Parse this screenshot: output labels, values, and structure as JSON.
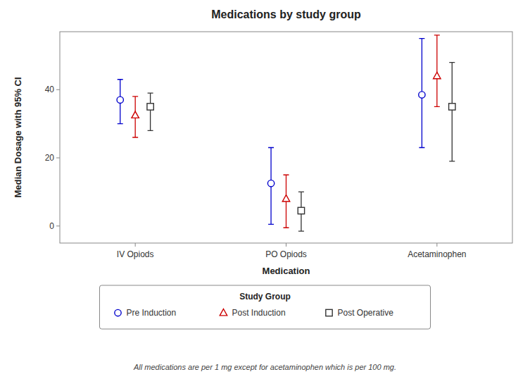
{
  "chart_data": {
    "type": "errorbar",
    "title": "Medications by study group",
    "x_label": "Medication",
    "y_label": "Median Dosage with 95% CI",
    "categories": [
      "IV Opiods",
      "PO Opiods",
      "Acetaminophen"
    ],
    "ylim": [
      -5,
      57
    ],
    "yticks": [
      0,
      20,
      40
    ],
    "grid": false,
    "legend": "bottom",
    "legend_title": "Study Group",
    "footnote": "All medications are per 1 mg except for acetaminophen which is per 100 mg.",
    "series": [
      {
        "name": "Pre Induction",
        "color": "#0000cc",
        "marker": "circle",
        "values": [
          37.0,
          12.5,
          38.5
        ],
        "ci_low": [
          30.0,
          0.5,
          23.0
        ],
        "ci_high": [
          43.0,
          23.0,
          55.0
        ]
      },
      {
        "name": "Post Induction",
        "color": "#cc0000",
        "marker": "triangle",
        "values": [
          32.5,
          8.0,
          44.0
        ],
        "ci_low": [
          26.0,
          -0.5,
          35.0
        ],
        "ci_high": [
          38.0,
          15.0,
          56.0
        ]
      },
      {
        "name": "Post Operative",
        "color": "#333333",
        "marker": "square",
        "values": [
          35.0,
          4.5,
          35.0
        ],
        "ci_low": [
          28.0,
          -1.5,
          19.0
        ],
        "ci_high": [
          39.0,
          10.0,
          48.0
        ]
      }
    ]
  }
}
